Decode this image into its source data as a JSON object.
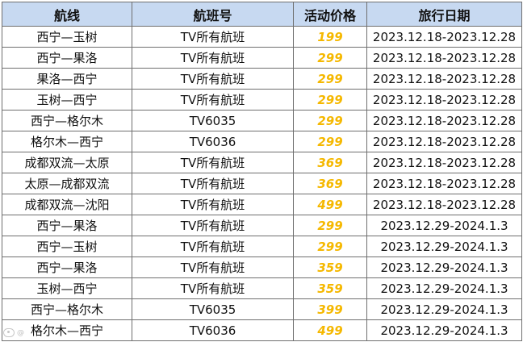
{
  "table": {
    "headers": {
      "route": "航线",
      "flight": "航班号",
      "price": "活动价格",
      "dates": "旅行日期"
    },
    "rows": [
      {
        "route": "西宁—玉树",
        "flight": "TV所有航班",
        "price": "199",
        "dates": "2023.12.18-2023.12.28"
      },
      {
        "route": "西宁—果洛",
        "flight": "TV所有航班",
        "price": "299",
        "dates": "2023.12.18-2023.12.28"
      },
      {
        "route": "果洛—西宁",
        "flight": "TV所有航班",
        "price": "299",
        "dates": "2023.12.18-2023.12.28"
      },
      {
        "route": "玉树—西宁",
        "flight": "TV所有航班",
        "price": "299",
        "dates": "2023.12.18-2023.12.28"
      },
      {
        "route": "西宁—格尔木",
        "flight": "TV6035",
        "price": "299",
        "dates": "2023.12.18-2023.12.28"
      },
      {
        "route": "格尔木—西宁",
        "flight": "TV6036",
        "price": "299",
        "dates": "2023.12.18-2023.12.28"
      },
      {
        "route": "成都双流—太原",
        "flight": "TV所有航班",
        "price": "369",
        "dates": "2023.12.18-2023.12.28"
      },
      {
        "route": "太原—成都双流",
        "flight": "TV所有航班",
        "price": "369",
        "dates": "2023.12.18-2023.12.28"
      },
      {
        "route": "成都双流—沈阳",
        "flight": "TV所有航班",
        "price": "499",
        "dates": "2023.12.18-2023.12.28"
      },
      {
        "route": "西宁—果洛",
        "flight": "TV所有航班",
        "price": "299",
        "dates": "2023.12.29-2024.1.3"
      },
      {
        "route": "西宁—玉树",
        "flight": "TV所有航班",
        "price": "299",
        "dates": "2023.12.29-2024.1.3"
      },
      {
        "route": "西宁—果洛",
        "flight": "TV所有航班",
        "price": "359",
        "dates": "2023.12.29-2024.1.3"
      },
      {
        "route": "玉树—西宁",
        "flight": "TV所有航班",
        "price": "359",
        "dates": "2023.12.29-2024.1.3"
      },
      {
        "route": "西宁—格尔木",
        "flight": "TV6035",
        "price": "399",
        "dates": "2023.12.29-2024.1.3"
      },
      {
        "route": "格尔木—西宁",
        "flight": "TV6036",
        "price": "499",
        "dates": "2023.12.29-2024.1.3"
      }
    ]
  },
  "colors": {
    "header_bg": "#c7d9f1",
    "price": "#f5b800",
    "border": "#6f6f6f"
  },
  "watermark": {
    "icon": "logo-icon",
    "text": "@"
  }
}
